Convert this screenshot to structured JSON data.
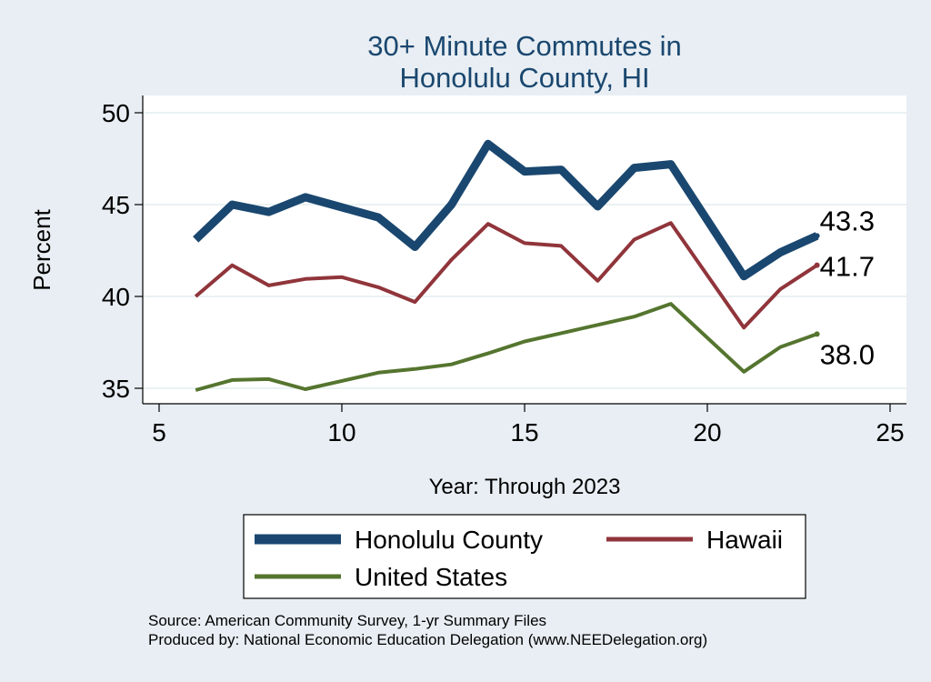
{
  "chart_data": {
    "type": "line",
    "title": [
      "30+ Minute Commutes in",
      "Honolulu County, HI"
    ],
    "xlabel": "Year: Through 2023",
    "ylabel": "Percent",
    "xlim": [
      5,
      25
    ],
    "ylim": [
      34.5,
      50.5
    ],
    "xticks": [
      5,
      10,
      15,
      20,
      25
    ],
    "yticks": [
      35,
      40,
      45,
      50
    ],
    "grid": true,
    "series": [
      {
        "name": "Honolulu County",
        "color": "#1a476f",
        "style": "thick",
        "end_label": "43.3",
        "points": [
          [
            6,
            43.1
          ],
          [
            7,
            45.0
          ],
          [
            8,
            44.6
          ],
          [
            9,
            45.4
          ],
          [
            10,
            44.85
          ],
          [
            11,
            44.3
          ],
          [
            12,
            42.7
          ],
          [
            13,
            45.0
          ],
          [
            14,
            48.3
          ],
          [
            15,
            46.8
          ],
          [
            16,
            46.9
          ],
          [
            17,
            44.9
          ],
          [
            18,
            47.0
          ],
          [
            19,
            47.2
          ],
          [
            21,
            41.1
          ],
          [
            22,
            42.4
          ],
          [
            23,
            43.3
          ]
        ]
      },
      {
        "name": "Hawaii",
        "color": "#90353b",
        "style": "medium",
        "end_label": "41.7",
        "points": [
          [
            6,
            40.0
          ],
          [
            7,
            41.7
          ],
          [
            8,
            40.6
          ],
          [
            9,
            40.95
          ],
          [
            10,
            41.05
          ],
          [
            11,
            40.5
          ],
          [
            12,
            39.7
          ],
          [
            13,
            42.0
          ],
          [
            14,
            43.95
          ],
          [
            15,
            42.9
          ],
          [
            16,
            42.75
          ],
          [
            17,
            40.85
          ],
          [
            18,
            43.1
          ],
          [
            19,
            44.0
          ],
          [
            21,
            38.3
          ],
          [
            22,
            40.4
          ],
          [
            23,
            41.7
          ]
        ]
      },
      {
        "name": "United States",
        "color": "#55752f",
        "style": "medium",
        "end_label": "38.0",
        "points": [
          [
            6,
            34.9
          ],
          [
            7,
            35.45
          ],
          [
            8,
            35.5
          ],
          [
            9,
            34.95
          ],
          [
            10,
            35.4
          ],
          [
            11,
            35.85
          ],
          [
            12,
            36.05
          ],
          [
            13,
            36.3
          ],
          [
            14,
            36.9
          ],
          [
            15,
            37.55
          ],
          [
            16,
            38.0
          ],
          [
            17,
            38.45
          ],
          [
            18,
            38.9
          ],
          [
            19,
            39.6
          ],
          [
            21,
            35.9
          ],
          [
            22,
            37.25
          ],
          [
            23,
            37.95
          ]
        ]
      }
    ],
    "legend": {
      "position": "bottom",
      "entries": [
        "Honolulu County",
        "Hawaii",
        "United States"
      ]
    }
  },
  "footer": {
    "source": "Source: American Community Survey, 1-yr Summary Files",
    "produced_by": "Produced by: National Economic Education Delegation (www.NEEDelegation.org)"
  }
}
